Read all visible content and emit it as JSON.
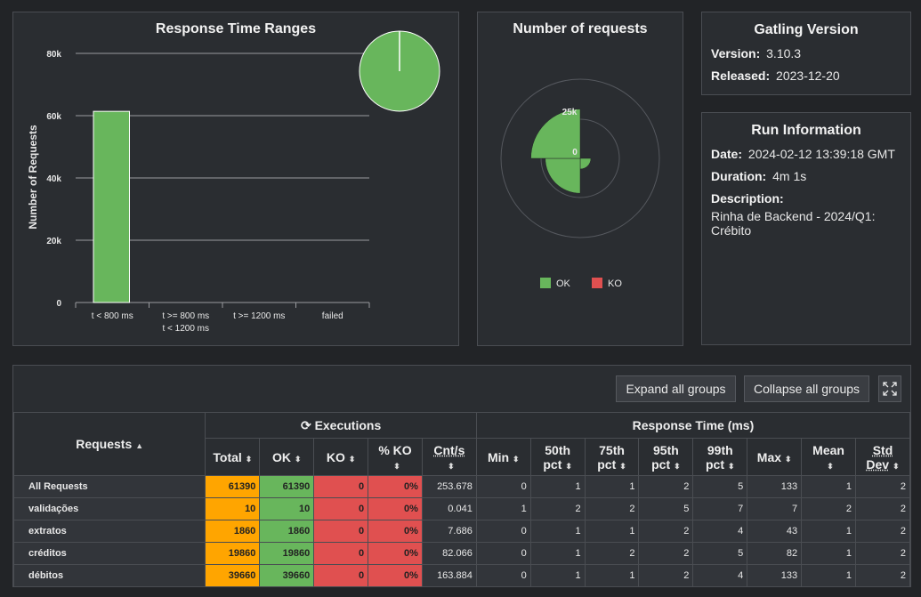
{
  "rtr": {
    "title": "Response Time Ranges",
    "ylabel": "Number of Requests",
    "yticks": [
      "80k",
      "60k",
      "40k",
      "20k",
      "0"
    ],
    "categories": [
      {
        "line1": "t < 800 ms",
        "line2": ""
      },
      {
        "line1": "t >= 800 ms",
        "line2": "t < 1200 ms"
      },
      {
        "line1": "t >= 1200 ms",
        "line2": ""
      },
      {
        "line1": "failed",
        "line2": ""
      }
    ]
  },
  "chart_data": [
    {
      "type": "bar",
      "title": "Response Time Ranges",
      "ylabel": "Number of Requests",
      "categories": [
        "t < 800 ms",
        "t >= 800 ms t < 1200 ms",
        "t >= 1200 ms",
        "failed"
      ],
      "values": [
        61390,
        0,
        0,
        0
      ],
      "ylim": [
        0,
        80000
      ],
      "color": "#68b65c",
      "inset_pie": {
        "values": [
          61390,
          0
        ],
        "colors": [
          "#68b65c",
          "#e05050"
        ]
      }
    },
    {
      "type": "pie",
      "title": "Number of requests",
      "subtype": "polar-area",
      "slices": [
        {
          "name": "validações",
          "value": 10
        },
        {
          "name": "extratos",
          "value": 1860
        },
        {
          "name": "créditos",
          "value": 19860
        },
        {
          "name": "débitos",
          "value": 39660
        }
      ],
      "radial_ticks": [
        "25k",
        "0"
      ],
      "legend": [
        "OK",
        "KO"
      ],
      "colors": {
        "OK": "#68b65c",
        "KO": "#e05050"
      }
    }
  ],
  "nr": {
    "title": "Number of requests",
    "tick_25k": "25k",
    "tick_0": "0",
    "legend_ok": "OK",
    "legend_ko": "KO"
  },
  "gatling": {
    "title": "Gatling Version",
    "version_label": "Version:",
    "version": "3.10.3",
    "released_label": "Released:",
    "released": "2023-12-20"
  },
  "run": {
    "title": "Run Information",
    "date_label": "Date:",
    "date": "2024-02-12 13:39:18 GMT",
    "duration_label": "Duration:",
    "duration": "4m 1s",
    "description_label": "Description:",
    "description": "Rinha de Backend - 2024/Q1: Crébito"
  },
  "toolbar": {
    "expand": "Expand all groups",
    "collapse": "Collapse all groups"
  },
  "table": {
    "requests_header": "Requests",
    "executions_header": "Executions",
    "response_header": "Response Time (ms)",
    "cols": {
      "total": "Total",
      "ok": "OK",
      "ko": "KO",
      "pctko": "% KO",
      "cnts": "Cnt/s",
      "min": "Min",
      "p50a": "50th",
      "p50b": "pct",
      "p75a": "75th",
      "p75b": "pct",
      "p95a": "95th",
      "p95b": "pct",
      "p99a": "99th",
      "p99b": "pct",
      "max": "Max",
      "mean": "Mean",
      "stda": "Std",
      "stdb": "Dev"
    },
    "rows": [
      {
        "name": "All Requests",
        "total": "61390",
        "ok": "61390",
        "ko": "0",
        "pctko": "0%",
        "cnts": "253.678",
        "min": "0",
        "p50": "1",
        "p75": "1",
        "p95": "2",
        "p99": "5",
        "max": "133",
        "mean": "1",
        "std": "2"
      },
      {
        "name": "validações",
        "total": "10",
        "ok": "10",
        "ko": "0",
        "pctko": "0%",
        "cnts": "0.041",
        "min": "1",
        "p50": "2",
        "p75": "2",
        "p95": "5",
        "p99": "7",
        "max": "7",
        "mean": "2",
        "std": "2"
      },
      {
        "name": "extratos",
        "total": "1860",
        "ok": "1860",
        "ko": "0",
        "pctko": "0%",
        "cnts": "7.686",
        "min": "0",
        "p50": "1",
        "p75": "1",
        "p95": "2",
        "p99": "4",
        "max": "43",
        "mean": "1",
        "std": "2"
      },
      {
        "name": "créditos",
        "total": "19860",
        "ok": "19860",
        "ko": "0",
        "pctko": "0%",
        "cnts": "82.066",
        "min": "0",
        "p50": "1",
        "p75": "2",
        "p95": "2",
        "p99": "5",
        "max": "82",
        "mean": "1",
        "std": "2"
      },
      {
        "name": "débitos",
        "total": "39660",
        "ok": "39660",
        "ko": "0",
        "pctko": "0%",
        "cnts": "163.884",
        "min": "0",
        "p50": "1",
        "p75": "1",
        "p95": "2",
        "p99": "4",
        "max": "133",
        "mean": "1",
        "std": "2"
      }
    ]
  }
}
